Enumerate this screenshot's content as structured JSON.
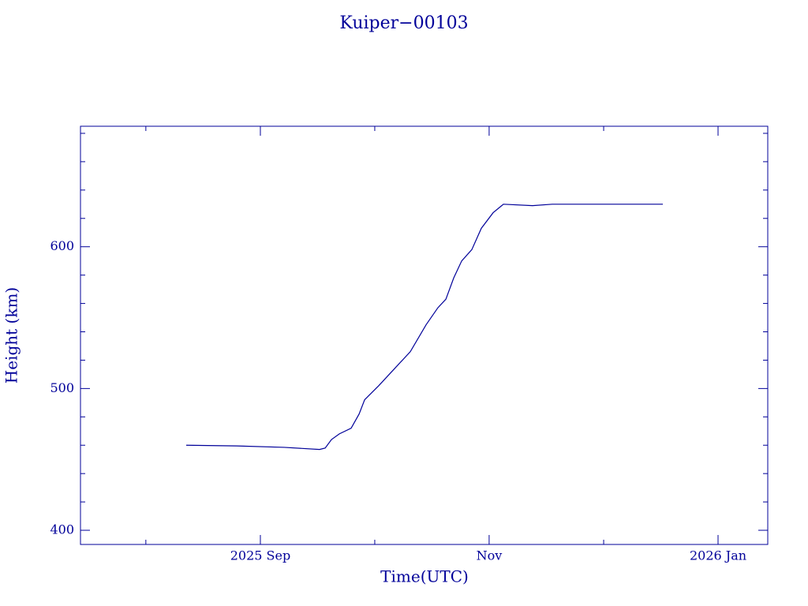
{
  "chart_data": {
    "type": "line",
    "title": "Kuiper−00103",
    "xlabel": "Time(UTC)",
    "ylabel": "Height (km)",
    "x": [
      2025.6127,
      2025.6495,
      2025.684,
      2025.7098,
      2025.7139,
      2025.7185,
      2025.7242,
      2025.7328,
      2025.7386,
      2025.7426,
      2025.7529,
      2025.7644,
      2025.7759,
      2025.7874,
      2025.796,
      2025.8018,
      2025.8075,
      2025.8133,
      2025.8207,
      2025.8276,
      2025.8362,
      2025.8437,
      2025.8649,
      2025.8793,
      2025.9138,
      2025.9598
    ],
    "values": [
      460,
      459.5,
      458.5,
      457,
      458,
      464,
      468,
      472,
      482,
      492,
      502,
      514,
      526,
      545,
      557,
      563,
      578,
      590,
      598,
      613,
      624,
      630,
      629,
      630,
      630,
      630
    ],
    "color": "#000099",
    "xlim": [
      2025.5357,
      2026.0362
    ],
    "xticks": [
      {
        "value": 2025.6667,
        "label": "2025 Sep"
      },
      {
        "value": 2025.8333,
        "label": "Nov"
      },
      {
        "value": 2026.0,
        "label": "2026 Jan"
      }
    ],
    "xminorticks": [
      2025.5833,
      2025.75,
      2025.9167
    ],
    "ylim": [
      390,
      685
    ],
    "yticks": [
      400,
      500,
      600
    ],
    "yminorticks": [
      420,
      440,
      460,
      480,
      520,
      540,
      560,
      580,
      620,
      640,
      660,
      680
    ]
  }
}
